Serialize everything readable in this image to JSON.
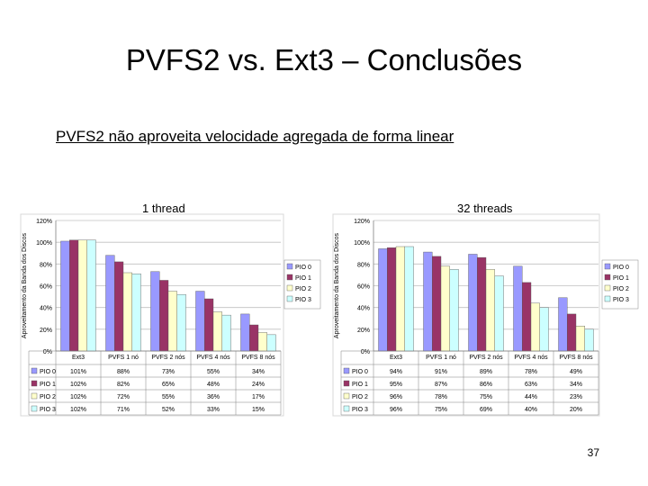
{
  "slide": {
    "title": "PVFS2 vs. Ext3 – Conclusões",
    "subtitle": "PVFS2 não aproveita velocidade agregada de forma linear",
    "page_number": "37"
  },
  "colors": {
    "PIO 0": "#9999ff",
    "PIO 1": "#993366",
    "PIO 2": "#ffffcc",
    "PIO 3": "#ccffff"
  },
  "chart_data": [
    {
      "type": "bar",
      "title": "1 thread",
      "ylabel": "Aproveitamento da Banda dos Discos",
      "ylim": [
        0,
        120
      ],
      "yticks": [
        "0%",
        "20%",
        "40%",
        "60%",
        "80%",
        "100%",
        "120%"
      ],
      "categories": [
        "Ext3",
        "PVFS 1 nó",
        "PVFS 2 nós",
        "PVFS 4 nós",
        "PVFS 8 nós"
      ],
      "series": [
        {
          "name": "PIO 0",
          "values": [
            101,
            88,
            73,
            55,
            34
          ],
          "labels": [
            "101%",
            "88%",
            "73%",
            "55%",
            "34%"
          ]
        },
        {
          "name": "PIO 1",
          "values": [
            102,
            82,
            65,
            48,
            24
          ],
          "labels": [
            "102%",
            "82%",
            "65%",
            "48%",
            "24%"
          ]
        },
        {
          "name": "PIO 2",
          "values": [
            102,
            72,
            55,
            36,
            17
          ],
          "labels": [
            "102%",
            "72%",
            "55%",
            "36%",
            "17%"
          ]
        },
        {
          "name": "PIO 3",
          "values": [
            102,
            71,
            52,
            33,
            15
          ],
          "labels": [
            "102%",
            "71%",
            "52%",
            "33%",
            "15%"
          ]
        }
      ],
      "legend": "right",
      "grid": true
    },
    {
      "type": "bar",
      "title": "32 threads",
      "ylabel": "Aproveitamento da Banda dos Discos",
      "ylim": [
        0,
        120
      ],
      "yticks": [
        "0%",
        "20%",
        "40%",
        "60%",
        "80%",
        "100%",
        "120%"
      ],
      "categories": [
        "Ext3",
        "PVFS 1 nó",
        "PVFS 2 nós",
        "PVFS 4 nós",
        "PVFS 8 nós"
      ],
      "series": [
        {
          "name": "PIO 0",
          "values": [
            94,
            91,
            89,
            78,
            49
          ],
          "labels": [
            "94%",
            "91%",
            "89%",
            "78%",
            "49%"
          ]
        },
        {
          "name": "PIO 1",
          "values": [
            95,
            87,
            86,
            63,
            34
          ],
          "labels": [
            "95%",
            "87%",
            "86%",
            "63%",
            "34%"
          ]
        },
        {
          "name": "PIO 2",
          "values": [
            96,
            78,
            75,
            44,
            23
          ],
          "labels": [
            "96%",
            "78%",
            "75%",
            "44%",
            "23%"
          ]
        },
        {
          "name": "PIO 3",
          "values": [
            96,
            75,
            69,
            40,
            20
          ],
          "labels": [
            "96%",
            "75%",
            "69%",
            "40%",
            "20%"
          ]
        }
      ],
      "legend": "right",
      "grid": true
    }
  ]
}
